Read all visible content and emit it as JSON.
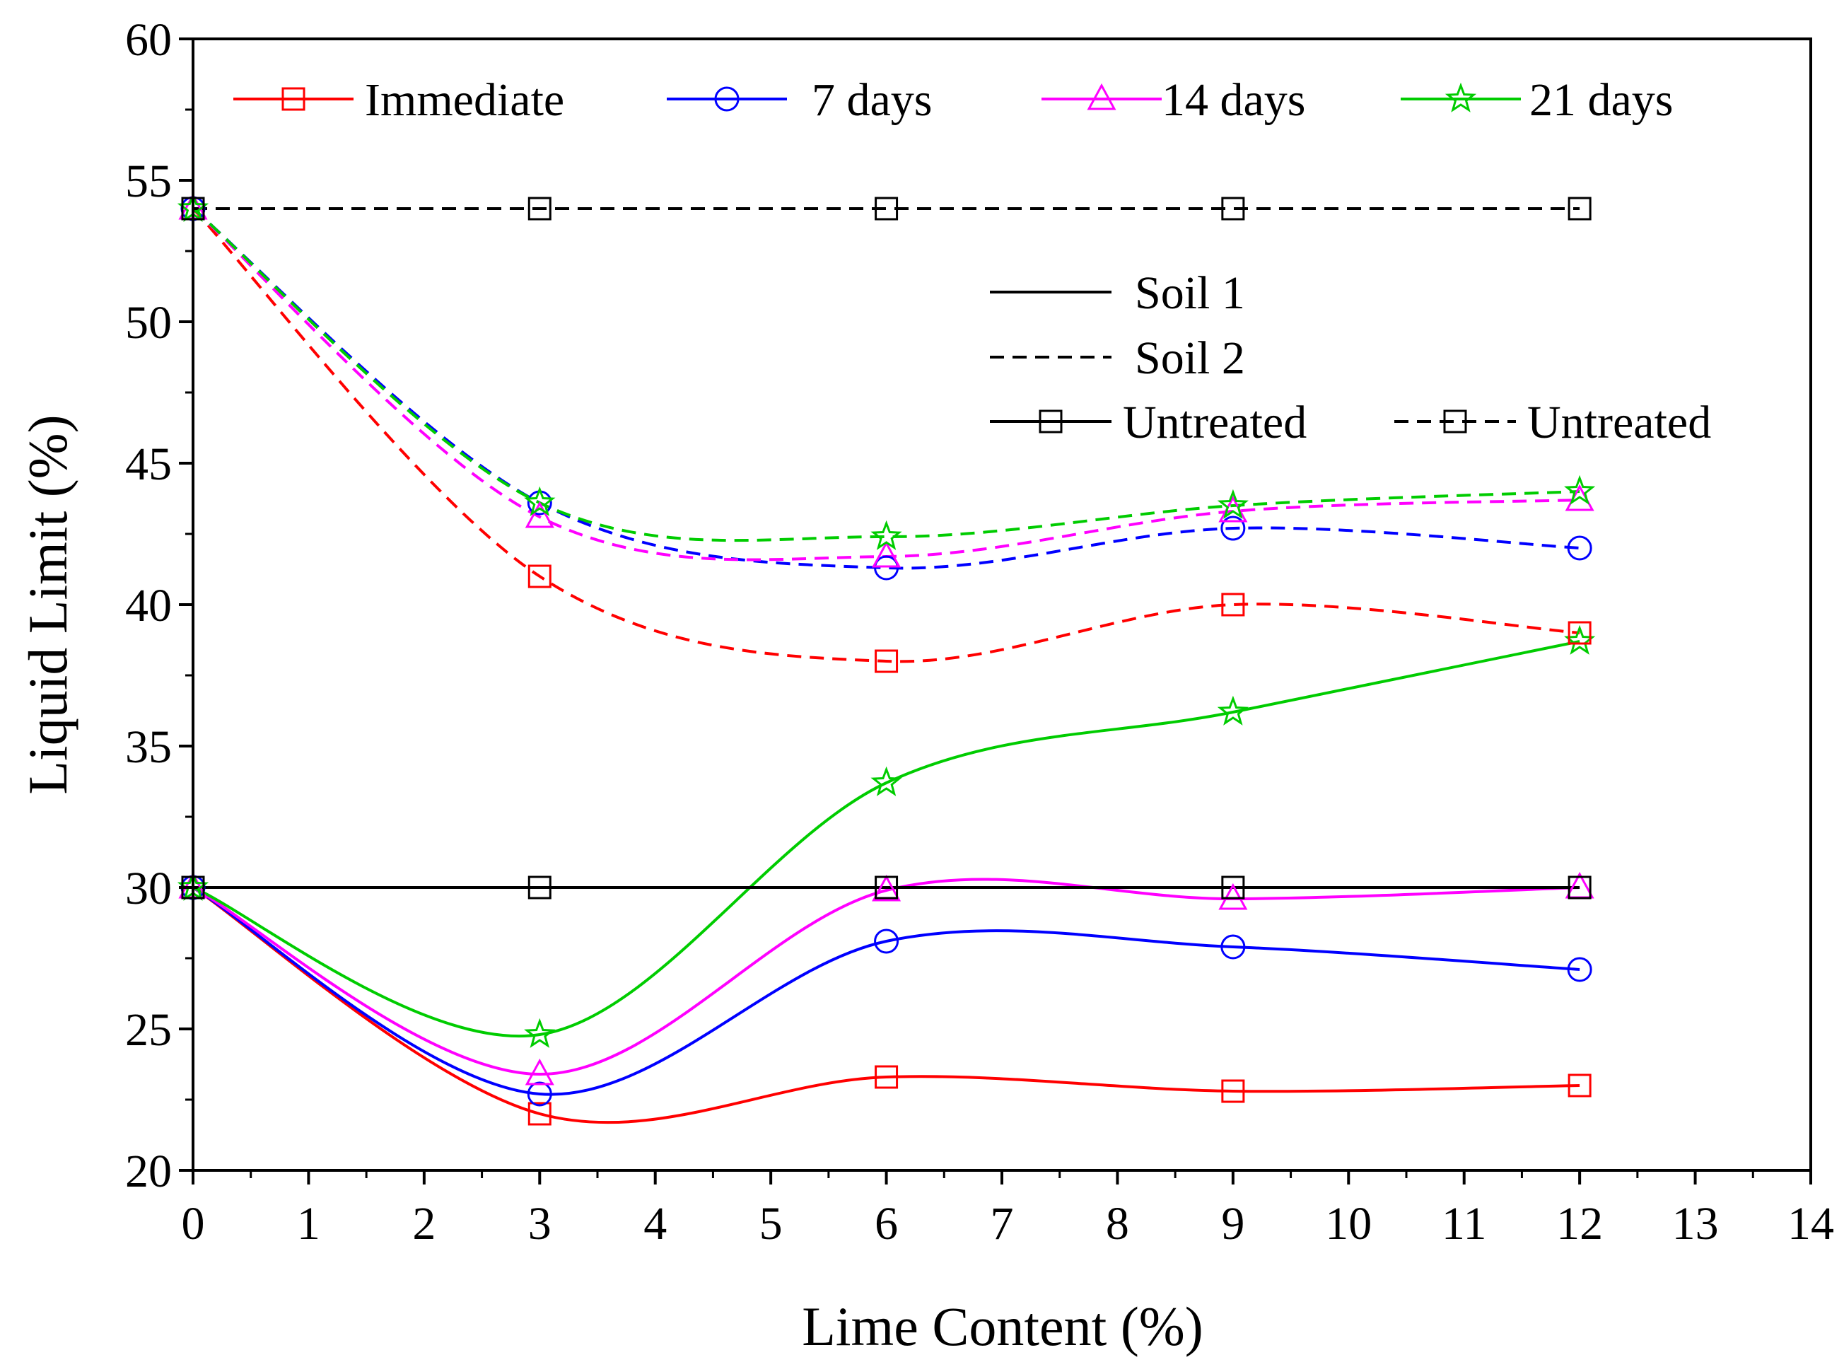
{
  "chart_data": {
    "type": "line",
    "title": "",
    "xlabel": "Lime Content (%)",
    "ylabel": "Liquid Limit (%)",
    "xlim": [
      0,
      14
    ],
    "ylim": [
      20,
      60
    ],
    "xticks": [
      0,
      1,
      2,
      3,
      4,
      5,
      6,
      7,
      8,
      9,
      10,
      11,
      12,
      13,
      14
    ],
    "yticks": [
      20,
      25,
      30,
      35,
      40,
      45,
      50,
      55,
      60
    ],
    "grid": false,
    "x": [
      0,
      3,
      6,
      9,
      12
    ],
    "series": [
      {
        "name": "Immediate",
        "soil": "Soil 1",
        "color": "#ff0000",
        "marker": "square",
        "dash": "solid",
        "values": [
          30,
          22,
          23.3,
          22.8,
          23
        ]
      },
      {
        "name": "7 days",
        "soil": "Soil 1",
        "color": "#0000ff",
        "marker": "circle",
        "dash": "solid",
        "values": [
          30,
          22.7,
          28.1,
          27.9,
          27.1
        ]
      },
      {
        "name": "14 days",
        "soil": "Soil 1",
        "color": "#ff00ff",
        "marker": "triangle",
        "dash": "solid",
        "values": [
          30,
          23.4,
          29.9,
          29.6,
          30
        ]
      },
      {
        "name": "21 days",
        "soil": "Soil 1",
        "color": "#00cc00",
        "marker": "star",
        "dash": "solid",
        "values": [
          30,
          24.8,
          33.7,
          36.2,
          38.7
        ]
      },
      {
        "name": "Untreated",
        "soil": "Soil 1",
        "color": "#000000",
        "marker": "square",
        "dash": "solid",
        "values": [
          30,
          30,
          30,
          30,
          30
        ]
      },
      {
        "name": "Immediate",
        "soil": "Soil 2",
        "color": "#ff0000",
        "marker": "square",
        "dash": "dashed",
        "values": [
          54,
          41,
          38,
          40,
          39
        ]
      },
      {
        "name": "7 days",
        "soil": "Soil 2",
        "color": "#0000ff",
        "marker": "circle",
        "dash": "dashed",
        "values": [
          54,
          43.6,
          41.3,
          42.7,
          42
        ]
      },
      {
        "name": "14 days",
        "soil": "Soil 2",
        "color": "#ff00ff",
        "marker": "triangle",
        "dash": "dashed",
        "values": [
          54,
          43.1,
          41.7,
          43.3,
          43.7
        ]
      },
      {
        "name": "21 days",
        "soil": "Soil 2",
        "color": "#00cc00",
        "marker": "star",
        "dash": "dashed",
        "values": [
          54,
          43.6,
          42.4,
          43.5,
          44
        ]
      },
      {
        "name": "Untreated",
        "soil": "Soil 2",
        "color": "#000000",
        "marker": "square",
        "dash": "dashed",
        "values": [
          54,
          54,
          54,
          54,
          54
        ]
      }
    ],
    "legend": {
      "placement": "top",
      "series_entries": [
        {
          "label": "Immediate",
          "color": "#ff0000",
          "marker": "square"
        },
        {
          "label": "7 days",
          "color": "#0000ff",
          "marker": "circle"
        },
        {
          "label": "14 days",
          "color": "#ff00ff",
          "marker": "triangle"
        },
        {
          "label": "21 days",
          "color": "#00cc00",
          "marker": "star"
        }
      ],
      "soil_entries": [
        {
          "label": "Soil 1",
          "dash": "solid"
        },
        {
          "label": "Soil 2",
          "dash": "dashed"
        }
      ],
      "untreated_entries": [
        {
          "label": "Untreated",
          "dash": "solid"
        },
        {
          "label": "Untreated",
          "dash": "dashed"
        }
      ]
    }
  }
}
